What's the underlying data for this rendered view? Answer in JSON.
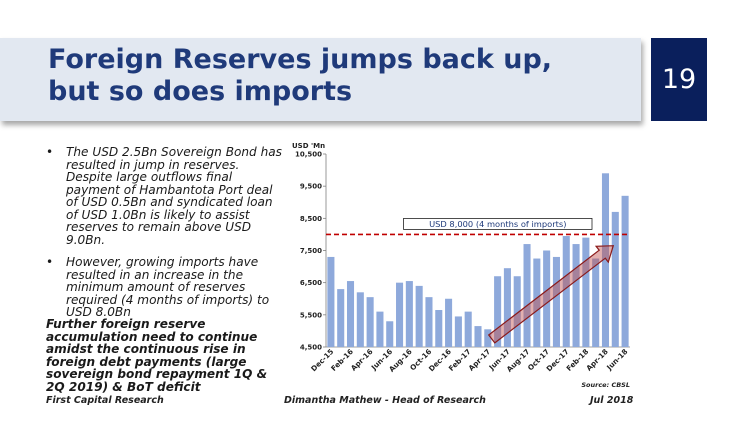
{
  "slide": {
    "title": "Foreign Reserves jumps back up, but so does imports",
    "page_number": "19"
  },
  "bullets": [
    "The USD 2.5Bn Sovereign Bond has resulted in jump in reserves. Despite large outflows final payment of Hambantota Port deal of USD 0.5Bn and syndicated loan of USD 1.0Bn is likely to assist reserves to remain above USD 9.0Bn.",
    "However, growing imports have resulted in an increase in the minimum amount of reserves required (4 months of imports) to USD 8.0Bn"
  ],
  "bullet_marker": "•",
  "note": "Further foreign reserve accumulation need to continue amidst the continuous rise in foreign debt payments (large sovereign bond repayment 1Q & 2Q 2019) & BoT deficit",
  "footer": {
    "left": "First Capital Research",
    "center": "Dimantha Mathew - Head of Research",
    "right": "Jul 2018"
  },
  "colors": {
    "title": "#1f3a7a",
    "page_box": "#0a1f5c",
    "bar": "#8ea9db",
    "threshold": "#c00000",
    "arrow": "#c0504d"
  },
  "chart_data": {
    "type": "bar",
    "ylabel": "USD 'Mn",
    "ylim": [
      4500,
      10500
    ],
    "yticks": [
      4500,
      5500,
      6500,
      7500,
      8500,
      9500,
      10500
    ],
    "ytick_labels": [
      "4,500",
      "5,500",
      "6,500",
      "7,500",
      "8,500",
      "9,500",
      "10,500"
    ],
    "categories": [
      "Dec-15",
      "Jan-16",
      "Feb-16",
      "Mar-16",
      "Apr-16",
      "May-16",
      "Jun-16",
      "Jul-16",
      "Aug-16",
      "Sep-16",
      "Oct-16",
      "Nov-16",
      "Dec-16",
      "Jan-17",
      "Feb-17",
      "Mar-17",
      "Apr-17",
      "May-17",
      "Jun-17",
      "Jul-17",
      "Aug-17",
      "Sep-17",
      "Oct-17",
      "Nov-17",
      "Dec-17",
      "Jan-18",
      "Feb-18",
      "Mar-18",
      "Apr-18",
      "May-18",
      "Jun-18"
    ],
    "visible_tick_labels": [
      "Dec-15",
      "Feb-16",
      "Apr-16",
      "Jun-16",
      "Aug-16",
      "Oct-16",
      "Dec-16",
      "Feb-17",
      "Apr-17",
      "Jun-17",
      "Aug-17",
      "Oct-17",
      "Dec-17",
      "Feb-18",
      "Apr-18",
      "Jun-18"
    ],
    "values": [
      7300,
      6300,
      6550,
      6200,
      6050,
      5600,
      5300,
      6500,
      6550,
      6400,
      6050,
      5650,
      6000,
      5450,
      5600,
      5150,
      5050,
      6700,
      6950,
      6700,
      7700,
      7250,
      7500,
      7300,
      7950,
      7700,
      7900,
      7250,
      9900,
      8700,
      9200
    ],
    "threshold": {
      "value": 8000,
      "label": "USD 8,000 (4 months of imports)"
    },
    "source": "Source: CBSL"
  }
}
